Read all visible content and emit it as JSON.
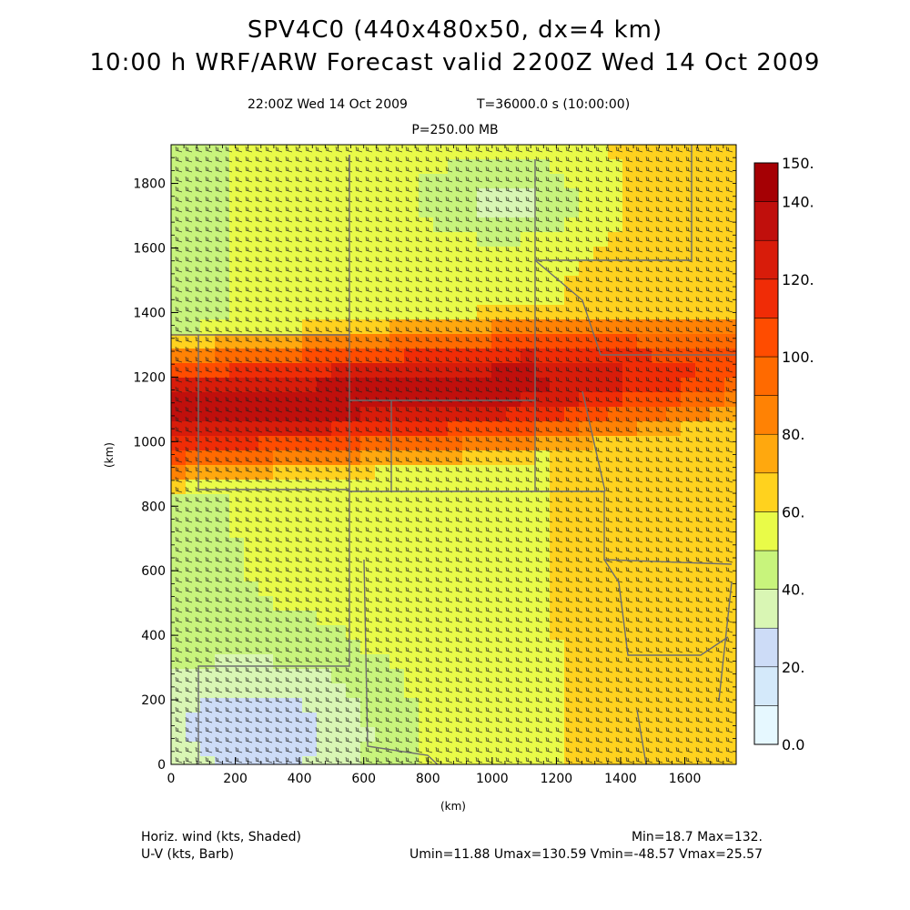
{
  "title_line1": "SPV4C0 (440x480x50, dx=4 km)",
  "title_line2": "10:00 h WRF/ARW Forecast valid 2200Z Wed 14 Oct 2009",
  "valid_time": "22:00Z Wed 14 Oct 2009",
  "time_info": "T=36000.0 s (10:00:00)",
  "level": "P=250.00 MB",
  "footer": {
    "field1": "Horiz. wind (kts, Shaded)",
    "field2": "U-V (kts, Barb)",
    "minmax": "Min=18.7 Max=132.",
    "uv_stats": "Umin=11.88 Umax=130.59 Vmin=-48.57 Vmax=25.57"
  },
  "chart_data": {
    "type": "heatmap",
    "xlabel": "(km)",
    "ylabel": "(km)",
    "xlim": [
      0,
      1760
    ],
    "ylim": [
      0,
      1920
    ],
    "x_ticks": [
      0,
      200,
      400,
      600,
      800,
      1000,
      1200,
      1400,
      1600
    ],
    "y_ticks": [
      0,
      200,
      400,
      600,
      800,
      1000,
      1200,
      1400,
      1600,
      1800
    ],
    "colorbar": {
      "levels": [
        0,
        10,
        20,
        30,
        40,
        50,
        60,
        70,
        80,
        90,
        100,
        110,
        120,
        130,
        140,
        150
      ],
      "labels": [
        "0.0",
        "20.",
        "40.",
        "60.",
        "80.",
        "100.",
        "120.",
        "140.",
        "150."
      ],
      "colors": [
        "#e6f8ff",
        "#d4e9fa",
        "#cddcf7",
        "#d9f6b4",
        "#c8f47c",
        "#e9fb48",
        "#ffd21e",
        "#ffa80e",
        "#ff8204",
        "#ff6a00",
        "#ff4c00",
        "#f02c06",
        "#d81c0a",
        "#c00f0c",
        "#a50004"
      ]
    },
    "wind_speed_range": [
      18.7,
      132
    ]
  }
}
